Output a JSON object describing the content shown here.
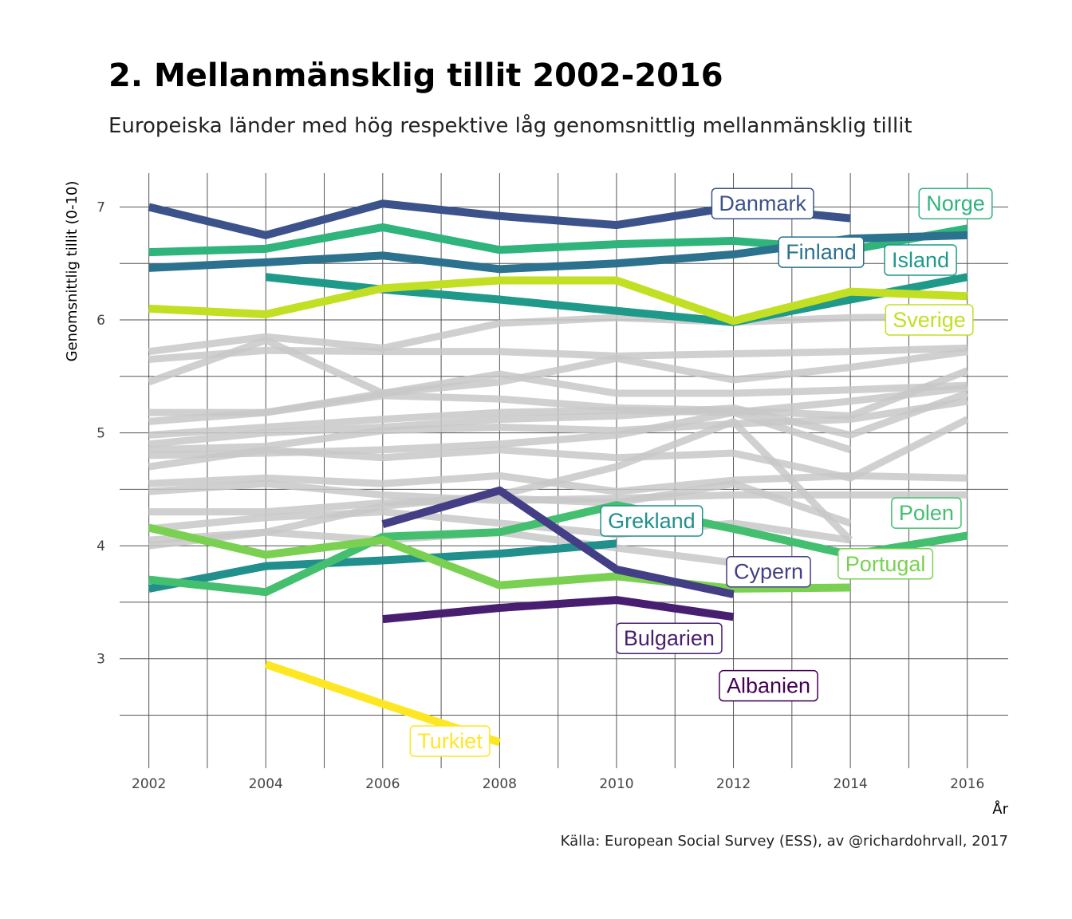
{
  "title": "2. Mellanmänsklig tillit 2002-2016",
  "subtitle": "Europeiska länder med hög respektive låg genomsnittlig mellanmänsklig tillit",
  "caption": "Källa: European Social Survey (ESS), av @richardohrvall, 2017",
  "chart_data": {
    "type": "line",
    "xlabel": "År",
    "ylabel": "Genomsnittlig tillit (0-10)",
    "x": [
      2002,
      2004,
      2006,
      2008,
      2010,
      2012,
      2014,
      2016
    ],
    "xlim": [
      2001.5,
      2016.7
    ],
    "ylim": [
      2.03,
      7.3
    ],
    "x_ticks": [
      "2002",
      "2004",
      "2006",
      "2008",
      "2010",
      "2012",
      "2014",
      "2016"
    ],
    "y_ticks": [
      "3",
      "4",
      "5",
      "6",
      "7"
    ],
    "grid": true,
    "background_series": [
      {
        "values": [
          5.72,
          5.85,
          5.75,
          5.97,
          6.02,
          5.98,
          6.02,
          6.03
        ]
      },
      {
        "values": [
          5.65,
          5.73,
          5.72,
          5.72,
          5.68,
          5.7,
          5.72,
          5.75
        ]
      },
      {
        "values": [
          5.45,
          5.82,
          5.35,
          5.45,
          5.66,
          5.47,
          5.58,
          5.72
        ]
      },
      {
        "values": [
          5.18,
          5.18,
          5.35,
          5.52,
          5.35,
          5.35,
          5.38,
          5.42
        ]
      },
      {
        "values": [
          5.1,
          5.18,
          5.33,
          5.3,
          5.22,
          5.2,
          5.15,
          5.55
        ]
      },
      {
        "values": [
          4.98,
          5.05,
          5.12,
          5.18,
          5.2,
          5.18,
          5.28,
          5.4
        ]
      },
      {
        "values": [
          4.9,
          5.0,
          5.05,
          5.12,
          5.15,
          5.22,
          4.98,
          5.35
        ]
      },
      {
        "values": [
          4.85,
          4.88,
          5.02,
          5.05,
          5.02,
          5.08,
          5.12,
          5.28
        ]
      },
      {
        "values": [
          4.8,
          4.82,
          4.85,
          4.9,
          4.98,
          5.18,
          4.85,
          null
        ]
      },
      {
        "values": [
          4.7,
          4.85,
          4.78,
          4.85,
          4.78,
          4.82,
          4.6,
          5.12
        ]
      },
      {
        "values": [
          4.55,
          4.6,
          4.55,
          4.62,
          4.48,
          4.58,
          4.62,
          4.6
        ]
      },
      {
        "values": [
          4.48,
          4.55,
          4.45,
          4.4,
          4.42,
          4.45,
          4.45,
          4.45
        ]
      },
      {
        "values": [
          4.3,
          4.3,
          4.38,
          4.42,
          4.38,
          4.55,
          4.2,
          null
        ]
      },
      {
        "values": [
          4.15,
          4.25,
          4.3,
          4.2,
          4.1,
          4.2,
          4.05,
          null
        ]
      },
      {
        "values": [
          4.05,
          4.12,
          4.05,
          4.12,
          3.98,
          3.85,
          null,
          null
        ]
      },
      {
        "values": [
          4.0,
          4.12,
          4.35,
          4.45,
          4.7,
          5.1,
          4.05,
          null
        ]
      }
    ],
    "series": [
      {
        "name": "Danmark",
        "color": "#3b528b",
        "values": [
          7.0,
          6.75,
          7.03,
          6.92,
          6.84,
          7.0,
          6.9,
          null
        ]
      },
      {
        "name": "Norge",
        "color": "#2fb47c",
        "values": [
          6.6,
          6.63,
          6.82,
          6.62,
          6.67,
          6.7,
          6.62,
          6.81
        ]
      },
      {
        "name": "Finland",
        "color": "#2c728e",
        "values": [
          6.46,
          6.51,
          6.57,
          6.45,
          6.5,
          6.58,
          6.72,
          6.75
        ]
      },
      {
        "name": "Island",
        "color": "#1f9a8a",
        "values": [
          null,
          6.38,
          6.27,
          6.18,
          6.08,
          5.98,
          6.18,
          6.38
        ]
      },
      {
        "name": "Sverige",
        "color": "#c2df23",
        "values": [
          6.1,
          6.05,
          6.28,
          6.35,
          6.35,
          5.99,
          6.25,
          6.21
        ]
      },
      {
        "name": "Grekland",
        "color": "#21908c",
        "values": [
          3.62,
          3.82,
          3.87,
          3.93,
          4.02,
          null,
          null,
          null
        ]
      },
      {
        "name": "Polen",
        "color": "#44bf70",
        "values": [
          3.7,
          3.59,
          4.08,
          4.12,
          4.36,
          4.15,
          3.92,
          4.09
        ]
      },
      {
        "name": "Portugal",
        "color": "#7ad151",
        "values": [
          4.16,
          3.92,
          4.05,
          3.65,
          3.73,
          3.62,
          3.63,
          null
        ]
      },
      {
        "name": "Cypern",
        "color": "#433e85",
        "values": [
          null,
          null,
          4.19,
          4.49,
          3.79,
          3.57,
          null,
          null
        ]
      },
      {
        "name": "Bulgarien",
        "color": "#481f70",
        "values": [
          null,
          null,
          3.35,
          3.45,
          3.52,
          3.37,
          null,
          null
        ]
      },
      {
        "name": "Turkiet",
        "color": "#fde725",
        "values": [
          null,
          2.95,
          2.6,
          2.26,
          null,
          null,
          null,
          null
        ]
      }
    ],
    "labels": [
      {
        "text": "Danmark",
        "color": "#3b528b",
        "x": 2012.5,
        "y": 7.03
      },
      {
        "text": "Norge",
        "color": "#2fb47c",
        "x": 2015.8,
        "y": 7.03
      },
      {
        "text": "Finland",
        "color": "#2c728e",
        "x": 2013.5,
        "y": 6.6
      },
      {
        "text": "Island",
        "color": "#1f9a8a",
        "x": 2015.2,
        "y": 6.53
      },
      {
        "text": "Sverige",
        "color": "#c2df23",
        "x": 2015.35,
        "y": 6.0
      },
      {
        "text": "Grekland",
        "color": "#21908c",
        "x": 2010.6,
        "y": 4.22
      },
      {
        "text": "Polen",
        "color": "#44bf70",
        "x": 2015.3,
        "y": 4.29
      },
      {
        "text": "Portugal",
        "color": "#7ad151",
        "x": 2014.6,
        "y": 3.84
      },
      {
        "text": "Cypern",
        "color": "#433e85",
        "x": 2012.6,
        "y": 3.77
      },
      {
        "text": "Bulgarien",
        "color": "#481f70",
        "x": 2010.9,
        "y": 3.18
      },
      {
        "text": "Albanien",
        "color": "#440154",
        "x": 2012.6,
        "y": 2.76
      },
      {
        "text": "Turkiet",
        "color": "#fde725",
        "x": 2007.15,
        "y": 2.27
      }
    ]
  }
}
